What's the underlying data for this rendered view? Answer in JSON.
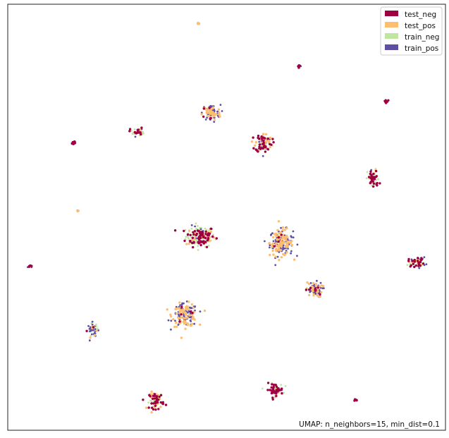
{
  "chart_data": {
    "type": "scatter",
    "title": "",
    "xlabel": "",
    "ylabel": "",
    "xlim": [
      0,
      100
    ],
    "ylim": [
      0,
      100
    ],
    "grid": false,
    "axis_ticks": false,
    "legend_position": "top-right",
    "annotation": "UMAP: n_neighbors=15, min_dist=0.1",
    "series": [
      {
        "name": "test_neg",
        "color": "#9e0142"
      },
      {
        "name": "test_pos",
        "color": "#fdbe6f"
      },
      {
        "name": "train_neg",
        "color": "#bfe5a0"
      },
      {
        "name": "train_pos",
        "color": "#5e4fa2"
      }
    ],
    "clusters": [
      {
        "x": 44.0,
        "y": 45.5,
        "spread": [
          3.0,
          2.2
        ],
        "mix": {
          "test_neg": 0.35,
          "test_pos": 0.1,
          "train_neg": 0.5,
          "train_pos": 0.05
        }
      },
      {
        "x": 62.5,
        "y": 44.0,
        "spread": [
          2.4,
          2.8
        ],
        "mix": {
          "test_neg": 0.02,
          "test_pos": 0.48,
          "train_neg": 0.0,
          "train_pos": 0.5
        }
      },
      {
        "x": 40.5,
        "y": 27.0,
        "spread": [
          2.6,
          2.4
        ],
        "mix": {
          "test_neg": 0.03,
          "test_pos": 0.47,
          "train_neg": 0.0,
          "train_pos": 0.5
        }
      },
      {
        "x": 46.5,
        "y": 74.5,
        "spread": [
          1.9,
          1.7
        ],
        "mix": {
          "test_neg": 0.05,
          "test_pos": 0.45,
          "train_neg": 0.0,
          "train_pos": 0.5
        }
      },
      {
        "x": 58.5,
        "y": 67.5,
        "spread": [
          1.7,
          2.0
        ],
        "mix": {
          "test_neg": 0.4,
          "test_pos": 0.3,
          "train_neg": 0.1,
          "train_pos": 0.2
        }
      },
      {
        "x": 70.0,
        "y": 33.0,
        "spread": [
          1.7,
          1.6
        ],
        "mix": {
          "test_neg": 0.1,
          "test_pos": 0.4,
          "train_neg": 0.0,
          "train_pos": 0.5
        }
      },
      {
        "x": 29.5,
        "y": 70.0,
        "spread": [
          1.4,
          0.9
        ],
        "mix": {
          "test_neg": 0.45,
          "test_pos": 0.05,
          "train_neg": 0.45,
          "train_pos": 0.05
        }
      },
      {
        "x": 83.5,
        "y": 59.0,
        "spread": [
          1.2,
          2.0
        ],
        "mix": {
          "test_neg": 0.45,
          "test_pos": 0.1,
          "train_neg": 0.4,
          "train_pos": 0.05
        }
      },
      {
        "x": 93.5,
        "y": 39.5,
        "spread": [
          1.8,
          1.0
        ],
        "mix": {
          "test_neg": 0.5,
          "test_pos": 0.15,
          "train_neg": 0.1,
          "train_pos": 0.25
        }
      },
      {
        "x": 61.0,
        "y": 9.5,
        "spread": [
          1.7,
          1.3
        ],
        "mix": {
          "test_neg": 0.55,
          "test_pos": 0.1,
          "train_neg": 0.35,
          "train_pos": 0.0
        }
      },
      {
        "x": 34.0,
        "y": 7.0,
        "spread": [
          1.5,
          1.8
        ],
        "mix": {
          "test_neg": 0.45,
          "test_pos": 0.25,
          "train_neg": 0.3,
          "train_pos": 0.0
        }
      },
      {
        "x": 19.5,
        "y": 23.5,
        "spread": [
          1.1,
          1.5
        ],
        "mix": {
          "test_neg": 0.05,
          "test_pos": 0.15,
          "train_neg": 0.3,
          "train_pos": 0.5
        }
      },
      {
        "x": 86.5,
        "y": 77.0,
        "spread": [
          0.5,
          0.6
        ],
        "mix": {
          "test_neg": 0.8,
          "test_pos": 0.0,
          "train_neg": 0.2,
          "train_pos": 0.0
        }
      },
      {
        "x": 66.5,
        "y": 85.5,
        "spread": [
          0.3,
          0.3
        ],
        "mix": {
          "test_neg": 0.5,
          "test_pos": 0.0,
          "train_neg": 0.0,
          "train_pos": 0.5
        }
      },
      {
        "x": 15.0,
        "y": 67.5,
        "spread": [
          0.5,
          0.4
        ],
        "mix": {
          "test_neg": 0.5,
          "test_pos": 0.0,
          "train_neg": 0.0,
          "train_pos": 0.5
        }
      },
      {
        "x": 5.0,
        "y": 38.5,
        "spread": [
          0.4,
          0.3
        ],
        "mix": {
          "test_neg": 0.5,
          "test_pos": 0.0,
          "train_neg": 0.0,
          "train_pos": 0.5
        }
      },
      {
        "x": 79.5,
        "y": 7.0,
        "spread": [
          0.3,
          0.2
        ],
        "mix": {
          "test_neg": 0.5,
          "test_pos": 0.0,
          "train_neg": 0.0,
          "train_pos": 0.5
        }
      },
      {
        "x": 43.5,
        "y": 95.5,
        "spread": [
          0.15,
          0.15
        ],
        "mix": {
          "test_neg": 0.0,
          "test_pos": 0.5,
          "train_neg": 0.0,
          "train_pos": 0.5
        }
      },
      {
        "x": 16.0,
        "y": 51.5,
        "spread": [
          0.15,
          0.15
        ],
        "mix": {
          "test_neg": 0.0,
          "test_pos": 0.5,
          "train_neg": 0.0,
          "train_pos": 0.5
        }
      }
    ]
  }
}
